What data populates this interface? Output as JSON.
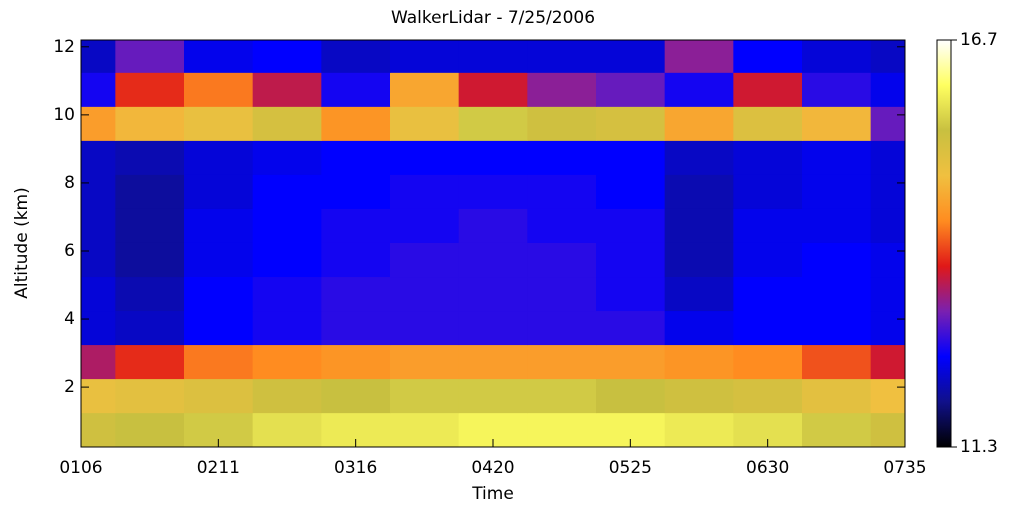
{
  "chart_data": {
    "type": "heatmap",
    "title": "WalkerLidar -  7/25/2006",
    "xlabel": "Time",
    "ylabel": "Altitude (km)",
    "x": [
      "0106",
      null,
      "0211",
      null,
      "0316",
      null,
      "0420",
      null,
      "0525",
      null,
      "0630",
      null,
      "0735"
    ],
    "y": [
      0.75,
      1.75,
      2.75,
      3.75,
      4.75,
      5.75,
      6.75,
      7.75,
      8.75,
      9.75,
      10.75,
      11.75
    ],
    "z": [
      [
        15.4,
        15.5,
        15.6,
        15.8,
        15.9,
        15.9,
        16.0,
        16.0,
        16.0,
        15.9,
        15.8,
        15.6,
        15.4
      ],
      [
        15.0,
        15.1,
        15.2,
        15.4,
        15.5,
        15.6,
        15.6,
        15.6,
        15.5,
        15.4,
        15.3,
        15.1,
        14.9
      ],
      [
        13.4,
        13.8,
        14.2,
        14.3,
        14.4,
        14.5,
        14.5,
        14.5,
        14.5,
        14.4,
        14.3,
        14.0,
        13.6
      ],
      [
        12.3,
        12.2,
        12.5,
        12.6,
        12.7,
        12.7,
        12.7,
        12.7,
        12.7,
        12.4,
        12.5,
        12.5,
        12.4
      ],
      [
        12.3,
        12.1,
        12.5,
        12.6,
        12.7,
        12.7,
        12.7,
        12.7,
        12.6,
        12.2,
        12.5,
        12.5,
        12.4
      ],
      [
        12.2,
        12.0,
        12.4,
        12.5,
        12.6,
        12.7,
        12.7,
        12.7,
        12.6,
        12.1,
        12.4,
        12.5,
        12.4
      ],
      [
        12.2,
        12.0,
        12.4,
        12.5,
        12.6,
        12.6,
        12.7,
        12.6,
        12.6,
        12.1,
        12.4,
        12.4,
        12.3
      ],
      [
        12.2,
        12.0,
        12.3,
        12.5,
        12.5,
        12.6,
        12.6,
        12.6,
        12.5,
        12.1,
        12.3,
        12.4,
        12.3
      ],
      [
        12.2,
        12.1,
        12.3,
        12.4,
        12.5,
        12.5,
        12.5,
        12.5,
        12.5,
        12.2,
        12.3,
        12.4,
        12.3
      ],
      [
        14.5,
        14.8,
        15.0,
        15.3,
        14.4,
        15.0,
        15.6,
        15.4,
        15.3,
        14.6,
        15.2,
        14.8,
        13.0
      ],
      [
        12.6,
        13.8,
        14.2,
        13.5,
        12.6,
        14.6,
        13.6,
        13.2,
        13.0,
        12.6,
        13.6,
        12.7,
        12.4
      ],
      [
        12.2,
        13.0,
        12.4,
        12.5,
        12.2,
        12.3,
        12.3,
        12.3,
        12.3,
        13.2,
        12.5,
        12.3,
        12.2
      ]
    ],
    "ylim": [
      0.24,
      12.2
    ],
    "yticks": [
      2,
      4,
      6,
      8,
      10,
      12
    ],
    "zlim": [
      11.3,
      16.7
    ],
    "zticks": [
      11.3,
      16.7
    ],
    "colormap": [
      "#000000",
      "#10108a",
      "#0000ff",
      "#7a20b0",
      "#e01818",
      "#ff8c20",
      "#f0c040",
      "#c8c040",
      "#ffff60",
      "#ffffff"
    ]
  }
}
